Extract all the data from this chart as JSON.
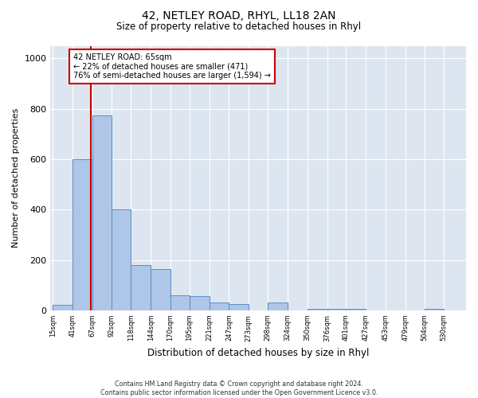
{
  "title": "42, NETLEY ROAD, RHYL, LL18 2AN",
  "subtitle": "Size of property relative to detached houses in Rhyl",
  "xlabel": "Distribution of detached houses by size in Rhyl",
  "ylabel": "Number of detached properties",
  "footer_line1": "Contains HM Land Registry data © Crown copyright and database right 2024.",
  "footer_line2": "Contains public sector information licensed under the Open Government Licence v3.0.",
  "bar_edges": [
    15,
    41,
    67,
    92,
    118,
    144,
    170,
    195,
    221,
    247,
    273,
    298,
    324,
    350,
    376,
    401,
    427,
    453,
    479,
    504,
    530
  ],
  "bar_heights": [
    20,
    600,
    775,
    400,
    180,
    165,
    60,
    55,
    30,
    25,
    0,
    30,
    0,
    5,
    5,
    5,
    0,
    0,
    0,
    5
  ],
  "bar_color": "#aec6e8",
  "bar_edge_color": "#5a8fc2",
  "property_size": 65,
  "property_line_color": "#cc0000",
  "annotation_text_line1": "42 NETLEY ROAD: 65sqm",
  "annotation_text_line2": "← 22% of detached houses are smaller (471)",
  "annotation_text_line3": "76% of semi-detached houses are larger (1,594) →",
  "annotation_box_color": "#cc0000",
  "ylim": [
    0,
    1050
  ],
  "yticks": [
    0,
    200,
    400,
    600,
    800,
    1000
  ],
  "bg_color": "#dde6f0",
  "grid_color": "#ffffff",
  "tick_labels": [
    "15sqm",
    "41sqm",
    "67sqm",
    "92sqm",
    "118sqm",
    "144sqm",
    "170sqm",
    "195sqm",
    "221sqm",
    "247sqm",
    "273sqm",
    "298sqm",
    "324sqm",
    "350sqm",
    "376sqm",
    "401sqm",
    "427sqm",
    "453sqm",
    "479sqm",
    "504sqm",
    "530sqm"
  ]
}
